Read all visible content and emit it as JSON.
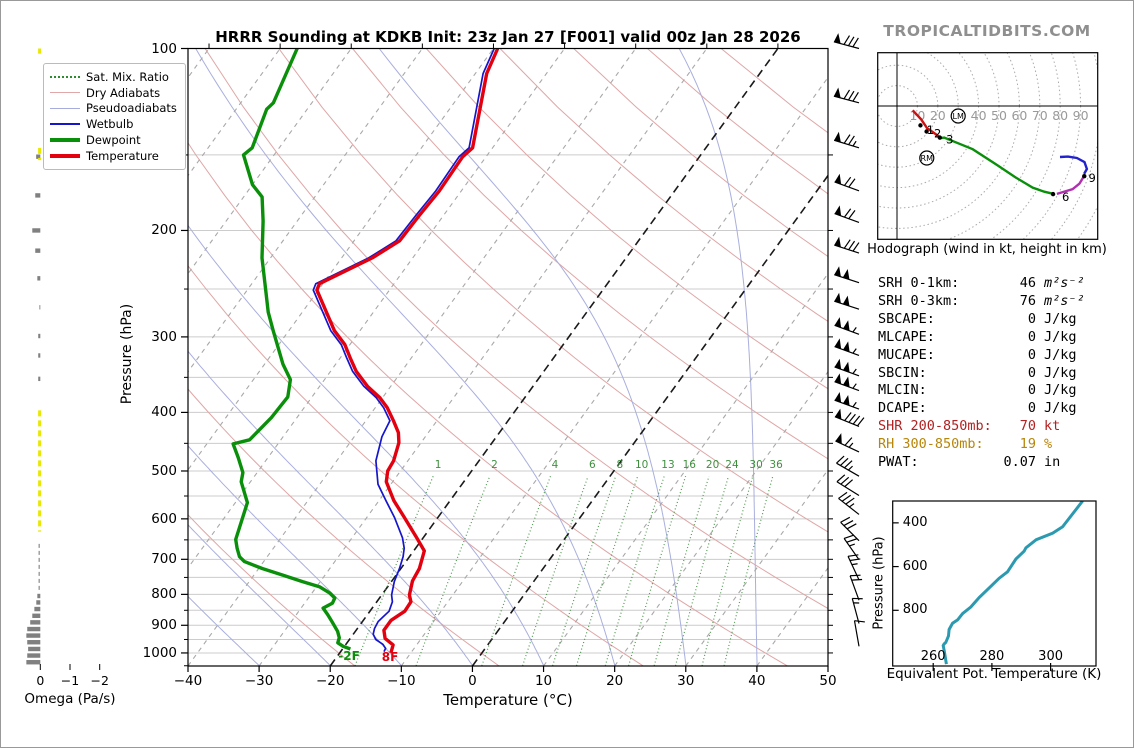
{
  "title": "HRRR Sounding at KDKB Init: 23z Jan 27 [F001] valid 00z Jan 28 2026",
  "watermark": "TROPICALTIDBITS.COM",
  "skewt": {
    "xlabel": "Temperature (°C)",
    "ylabel": "Pressure (hPa)",
    "pressure_ticks": [
      100,
      200,
      300,
      400,
      500,
      600,
      700,
      800,
      900,
      1000
    ],
    "temp_ticks": [
      -40,
      -30,
      -20,
      -10,
      0,
      10,
      20,
      30,
      40,
      50
    ],
    "mixing_ratio_labels": [
      1,
      2,
      4,
      6,
      8,
      10,
      13,
      16,
      20,
      24,
      30,
      36
    ],
    "surface_temp_label": "8F",
    "surface_dew_label": "-2F",
    "legend": [
      {
        "label": "Sat. Mix. Ratio",
        "color": "#2e8b2e",
        "style": "dotted"
      },
      {
        "label": "Dry Adiabats",
        "color": "#e0a8a8",
        "style": "thin"
      },
      {
        "label": "Pseudoadiabats",
        "color": "#a6acdc",
        "style": "thin"
      },
      {
        "label": "Wetbulb",
        "color": "#1515cc",
        "style": "med"
      },
      {
        "label": "Dewpoint",
        "color": "#0a8f0a",
        "style": "thick"
      },
      {
        "label": "Temperature",
        "color": "#e3000f",
        "style": "thick"
      }
    ]
  },
  "omega_panel": {
    "label": "Omega (Pa/s)",
    "ticks": [
      0,
      -1,
      -2
    ]
  },
  "hodograph_panel": {
    "caption": "Hodograph (wind in kt, height in km)",
    "ring_step_kt": 10,
    "ring_labels": [
      10,
      20,
      30,
      40,
      50,
      60,
      70,
      80,
      90
    ]
  },
  "theta_e_panel": {
    "xlabel": "Equivalent Pot. Temperature (K)",
    "ylabel": "Pressure (hPa)",
    "x_ticks": [
      260,
      280,
      300
    ],
    "y_ticks": [
      400,
      600,
      800
    ]
  },
  "stats": [
    {
      "label": "SRH 0-1km:",
      "value": "46",
      "unit": "m²s⁻²",
      "italic_unit": true,
      "color": "#000000"
    },
    {
      "label": "SRH 0-3km:",
      "value": "76",
      "unit": "m²s⁻²",
      "italic_unit": true,
      "color": "#000000"
    },
    {
      "label": "SBCAPE:",
      "value": "0",
      "unit": "J/kg",
      "color": "#000000"
    },
    {
      "label": "MLCAPE:",
      "value": "0",
      "unit": "J/kg",
      "color": "#000000"
    },
    {
      "label": "MUCAPE:",
      "value": "0",
      "unit": "J/kg",
      "color": "#000000"
    },
    {
      "label": "SBCIN:",
      "value": "0",
      "unit": "J/kg",
      "color": "#000000"
    },
    {
      "label": "MLCIN:",
      "value": "0",
      "unit": "J/kg",
      "color": "#000000"
    },
    {
      "label": "DCAPE:",
      "value": "0",
      "unit": "J/kg",
      "color": "#000000"
    },
    {
      "label": "SHR 200-850mb:",
      "value": "70",
      "unit": "kt",
      "color": "#b22222"
    },
    {
      "label": "RH 300-850mb:",
      "value": "19",
      "unit": "%",
      "color": "#b8860b"
    },
    {
      "label": "PWAT:",
      "value": "0.07",
      "unit": "in",
      "color": "#000000"
    }
  ],
  "chart_data": {
    "type": "skewt-sounding",
    "pressure_unit": "hPa",
    "temp_unit": "degC",
    "temperature": [
      [
        100,
        -59.4
      ],
      [
        110,
        -58.4
      ],
      [
        146,
        -52.8
      ],
      [
        151,
        -53.3
      ],
      [
        172,
        -53.1
      ],
      [
        189,
        -53.4
      ],
      [
        208,
        -53.6
      ],
      [
        222,
        -55.7
      ],
      [
        245,
        -60.5
      ],
      [
        251,
        -60.2
      ],
      [
        293,
        -53.6
      ],
      [
        309,
        -50.7
      ],
      [
        325,
        -48.6
      ],
      [
        342,
        -46.4
      ],
      [
        362,
        -43.3
      ],
      [
        378,
        -40.4
      ],
      [
        393,
        -38.3
      ],
      [
        413,
        -36.1
      ],
      [
        432,
        -34.2
      ],
      [
        449,
        -33.1
      ],
      [
        481,
        -32.0
      ],
      [
        500,
        -31.8
      ],
      [
        521,
        -30.9
      ],
      [
        560,
        -27.9
      ],
      [
        597,
        -24.7
      ],
      [
        645,
        -20.9
      ],
      [
        678,
        -18.5
      ],
      [
        725,
        -17.4
      ],
      [
        760,
        -17.1
      ],
      [
        802,
        -16.1
      ],
      [
        823,
        -15.2
      ],
      [
        853,
        -15.1
      ],
      [
        883,
        -16.1
      ],
      [
        917,
        -16.1
      ],
      [
        946,
        -15.1
      ],
      [
        970,
        -13.3
      ],
      [
        1000,
        -12.8
      ]
    ],
    "dewpoint": [
      [
        100,
        -87.6
      ],
      [
        110,
        -86.6
      ],
      [
        123,
        -85.4
      ],
      [
        126,
        -85.7
      ],
      [
        146,
        -83.8
      ],
      [
        150,
        -84.3
      ],
      [
        168,
        -80.0
      ],
      [
        176,
        -77.4
      ],
      [
        193,
        -74.8
      ],
      [
        222,
        -71.2
      ],
      [
        251,
        -67.4
      ],
      [
        273,
        -64.8
      ],
      [
        293,
        -62.2
      ],
      [
        333,
        -57.4
      ],
      [
        353,
        -54.8
      ],
      [
        377,
        -53.4
      ],
      [
        408,
        -53.6
      ],
      [
        444,
        -54.4
      ],
      [
        451,
        -56.3
      ],
      [
        475,
        -54.2
      ],
      [
        503,
        -52.0
      ],
      [
        521,
        -51.3
      ],
      [
        564,
        -48.3
      ],
      [
        649,
        -46.2
      ],
      [
        671,
        -45.1
      ],
      [
        693,
        -43.9
      ],
      [
        706,
        -42.7
      ],
      [
        725,
        -39.5
      ],
      [
        743,
        -36.0
      ],
      [
        762,
        -32.5
      ],
      [
        777,
        -29.6
      ],
      [
        796,
        -27.5
      ],
      [
        811,
        -26.3
      ],
      [
        827,
        -26.1
      ],
      [
        843,
        -26.9
      ],
      [
        864,
        -25.6
      ],
      [
        887,
        -24.3
      ],
      [
        921,
        -22.5
      ],
      [
        944,
        -21.6
      ],
      [
        962,
        -21.3
      ],
      [
        975,
        -20.2
      ],
      [
        985,
        -18.9
      ]
    ],
    "wetbulb": [
      [
        100,
        -59.9
      ],
      [
        110,
        -58.9
      ],
      [
        146,
        -53.3
      ],
      [
        151,
        -53.8
      ],
      [
        172,
        -53.6
      ],
      [
        189,
        -53.9
      ],
      [
        208,
        -54.1
      ],
      [
        222,
        -56.2
      ],
      [
        245,
        -61.0
      ],
      [
        251,
        -60.7
      ],
      [
        293,
        -54.1
      ],
      [
        309,
        -51.2
      ],
      [
        325,
        -49.1
      ],
      [
        342,
        -46.9
      ],
      [
        362,
        -43.8
      ],
      [
        378,
        -40.9
      ],
      [
        393,
        -38.8
      ],
      [
        413,
        -36.6
      ],
      [
        439,
        -36.1
      ],
      [
        481,
        -34.5
      ],
      [
        526,
        -31.8
      ],
      [
        560,
        -29.0
      ],
      [
        597,
        -26.1
      ],
      [
        645,
        -22.9
      ],
      [
        671,
        -21.6
      ],
      [
        693,
        -20.9
      ],
      [
        725,
        -20.2
      ],
      [
        762,
        -19.6
      ],
      [
        802,
        -18.6
      ],
      [
        823,
        -17.8
      ],
      [
        853,
        -17.3
      ],
      [
        887,
        -17.8
      ],
      [
        911,
        -17.6
      ],
      [
        931,
        -17.2
      ],
      [
        950,
        -16.3
      ],
      [
        968,
        -14.8
      ],
      [
        983,
        -14.0
      ],
      [
        995,
        -13.9
      ]
    ],
    "wind_barbs": [
      {
        "p": 100,
        "spd": 80,
        "dir": 285
      },
      {
        "p": 123,
        "spd": 80,
        "dir": 285
      },
      {
        "p": 146,
        "spd": 75,
        "dir": 287
      },
      {
        "p": 172,
        "spd": 70,
        "dir": 290
      },
      {
        "p": 194,
        "spd": 70,
        "dir": 290
      },
      {
        "p": 218,
        "spd": 80,
        "dir": 288
      },
      {
        "p": 244,
        "spd": 100,
        "dir": 288
      },
      {
        "p": 270,
        "spd": 100,
        "dir": 288
      },
      {
        "p": 297,
        "spd": 105,
        "dir": 290
      },
      {
        "p": 322,
        "spd": 105,
        "dir": 290
      },
      {
        "p": 348,
        "spd": 105,
        "dir": 290
      },
      {
        "p": 368,
        "spd": 105,
        "dir": 290
      },
      {
        "p": 395,
        "spd": 105,
        "dir": 290
      },
      {
        "p": 422,
        "spd": 90,
        "dir": 292
      },
      {
        "p": 465,
        "spd": 65,
        "dir": 295
      },
      {
        "p": 510,
        "spd": 35,
        "dir": 300
      },
      {
        "p": 549,
        "spd": 30,
        "dir": 302
      },
      {
        "p": 590,
        "spd": 35,
        "dir": 308
      },
      {
        "p": 652,
        "spd": 30,
        "dir": 315
      },
      {
        "p": 701,
        "spd": 25,
        "dir": 325
      },
      {
        "p": 757,
        "spd": 25,
        "dir": 335
      },
      {
        "p": 818,
        "spd": 20,
        "dir": 340
      },
      {
        "p": 894,
        "spd": 15,
        "dir": 345
      },
      {
        "p": 975,
        "spd": 10,
        "dir": 350
      }
    ],
    "omega": {
      "unit": "Pa/s",
      "bars": [
        {
          "p": 151,
          "v": 0.14
        },
        {
          "p": 175,
          "v": 0.17
        },
        {
          "p": 200,
          "v": 0.27
        },
        {
          "p": 216,
          "v": 0.17
        },
        {
          "p": 240,
          "v": 0.1
        },
        {
          "p": 268,
          "v": 0.03
        },
        {
          "p": 299,
          "v": 0.07
        },
        {
          "p": 322,
          "v": 0.07
        },
        {
          "p": 352,
          "v": 0.07
        },
        {
          "p": 805,
          "v": 0.1
        },
        {
          "p": 825,
          "v": 0.135
        },
        {
          "p": 846,
          "v": 0.2
        },
        {
          "p": 868,
          "v": 0.27
        },
        {
          "p": 890,
          "v": 0.34
        },
        {
          "p": 913,
          "v": 0.44
        },
        {
          "p": 936,
          "v": 0.47
        },
        {
          "p": 960,
          "v": 0.44
        },
        {
          "p": 985,
          "v": 0.41
        },
        {
          "p": 1010,
          "v": 0.44
        },
        {
          "p": 1036,
          "v": 0.47
        }
      ],
      "yellow_dashed_ranges": [
        {
          "p0": 100,
          "p1": 102
        },
        {
          "p0": 146,
          "p1": 153
        },
        {
          "p0": 397,
          "p1": 630
        }
      ],
      "gray_dashed_ranges": [
        {
          "p0": 660,
          "p1": 788
        }
      ]
    },
    "hodograph": {
      "units": "kt",
      "segments": [
        {
          "km": "0-3",
          "color": "#cc1111",
          "pts": [
            [
              7.7,
              -2.1
            ],
            [
              11.8,
              -6.5
            ],
            [
              14.7,
              -10.8
            ],
            [
              18.1,
              -13.2
            ],
            [
              21.6,
              -15.7
            ]
          ]
        },
        {
          "km": "3-6",
          "color": "#0a8f0a",
          "pts": [
            [
              21.6,
              -15.7
            ],
            [
              23.2,
              -15.5
            ],
            [
              30.5,
              -18.5
            ],
            [
              37.1,
              -21.2
            ],
            [
              48.5,
              -28.6
            ],
            [
              58.3,
              -35.1
            ],
            [
              66.5,
              -40.0
            ],
            [
              72.2,
              -42.0
            ],
            [
              76.3,
              -43.0
            ]
          ]
        },
        {
          "km": "6-9",
          "color": "#b030b0",
          "pts": [
            [
              78.4,
              -43.1
            ],
            [
              86.1,
              -40.8
            ],
            [
              89.4,
              -38.1
            ],
            [
              91.7,
              -34.3
            ]
          ]
        },
        {
          "km": "9-12",
          "color": "#2222cc",
          "pts": [
            [
              91.7,
              -33.3
            ],
            [
              93.1,
              -30.9
            ],
            [
              91.9,
              -27.5
            ],
            [
              88.2,
              -25.5
            ],
            [
              83.8,
              -24.8
            ],
            [
              79.9,
              -25.0
            ]
          ]
        }
      ],
      "height_labels": [
        {
          "km": "1",
          "u": 12.6,
          "v": -11.7
        },
        {
          "km": "2",
          "u": 16.2,
          "v": -13.6
        },
        {
          "km": "3",
          "u": 22.1,
          "v": -16.4
        },
        {
          "km": "6",
          "u": 78.9,
          "v": -44.5
        },
        {
          "km": "9",
          "u": 91.9,
          "v": -35.3
        }
      ],
      "height_dots": [
        [
          11.5,
          -9.5
        ],
        [
          14.5,
          -12.5
        ],
        [
          21.0,
          -15.5
        ],
        [
          76.5,
          -43.2
        ],
        [
          91.8,
          -34.4
        ]
      ],
      "storm_motion": [
        {
          "label": "RM",
          "u": 14.6,
          "v": -25.5
        },
        {
          "label": "LM",
          "u": 30.0,
          "v": -4.9
        }
      ]
    },
    "theta_e": [
      [
        310.9,
        300
      ],
      [
        304.1,
        418
      ],
      [
        300.7,
        447
      ],
      [
        295.1,
        477
      ],
      [
        291.6,
        514
      ],
      [
        291.0,
        529
      ],
      [
        288.2,
        565
      ],
      [
        285.3,
        624
      ],
      [
        282.5,
        653
      ],
      [
        279.1,
        697
      ],
      [
        275.7,
        741
      ],
      [
        272.8,
        785
      ],
      [
        270.0,
        815
      ],
      [
        268.3,
        844
      ],
      [
        266.6,
        859
      ],
      [
        265.4,
        888
      ],
      [
        265.2,
        917
      ],
      [
        264.3,
        947
      ],
      [
        263.7,
        954
      ],
      [
        263.4,
        961
      ],
      [
        263.8,
        990
      ],
      [
        264.5,
        1046
      ]
    ]
  }
}
